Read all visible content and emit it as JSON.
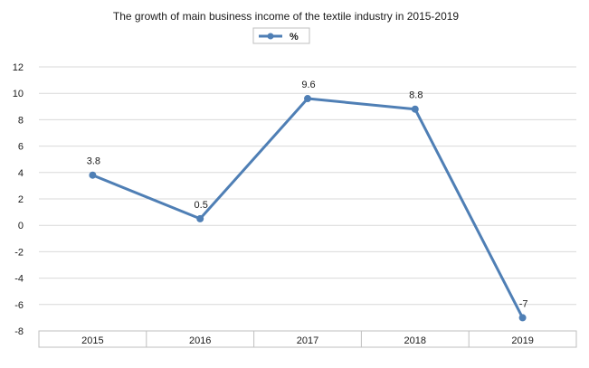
{
  "chart_data": {
    "type": "line",
    "title": "The growth of main business income of the textile industry in 2015-2019",
    "xlabel": "",
    "ylabel": "",
    "categories": [
      "2015",
      "2016",
      "2017",
      "2018",
      "2019"
    ],
    "series": [
      {
        "name": "%",
        "values": [
          3.8,
          0.5,
          9.6,
          8.8,
          -7
        ]
      }
    ],
    "data_labels": [
      "3.8",
      "0.5",
      "9.6",
      "8.8",
      "-7"
    ],
    "ylim": [
      -8,
      12
    ],
    "yticks": [
      12,
      10,
      8,
      6,
      4,
      2,
      0,
      -2,
      -4,
      -6,
      -8
    ],
    "grid": true,
    "legend_position": "top",
    "colors": {
      "line": "#4f7fb5",
      "grid": "#d9d9d9",
      "axis_box": "#bfbfbf"
    }
  }
}
